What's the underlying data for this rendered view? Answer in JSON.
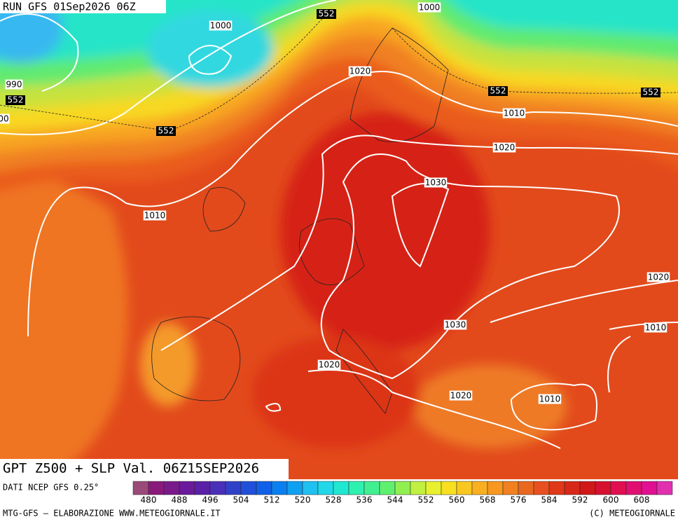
{
  "header": {
    "run": "RUN GFS 01Sep2026 06Z",
    "title": "GPT Z500 + SLP Val. 06Z15SEP2026"
  },
  "contour_labels": {
    "z500": [
      "552",
      "552",
      "552",
      "552",
      "552"
    ],
    "slp": [
      "1000",
      "1000",
      "990",
      "00",
      "1020",
      "1010",
      "1020",
      "1010",
      "1030",
      "1020",
      "1010",
      "1030",
      "1020",
      "1020",
      "1010"
    ]
  },
  "colorbar": {
    "colors": [
      "#9a4a7a",
      "#8a1a7a",
      "#7a1a8a",
      "#6a1a9a",
      "#5a20a8",
      "#4a30b8",
      "#3040c8",
      "#2050d8",
      "#1060e8",
      "#0a80f0",
      "#10a0f0",
      "#20c0f0",
      "#20d8e8",
      "#20e8d0",
      "#30f0b0",
      "#40f090",
      "#60f070",
      "#90f050",
      "#c0f040",
      "#e8f030",
      "#f8e020",
      "#f8c820",
      "#f8b020",
      "#f89820",
      "#f08020",
      "#e86820",
      "#e85020",
      "#e03818",
      "#d82818",
      "#d01818",
      "#d81030",
      "#e01050",
      "#e01070",
      "#e01090",
      "#e030b0"
    ],
    "labels": [
      480,
      488,
      496,
      504,
      512,
      520,
      528,
      536,
      544,
      552,
      560,
      568,
      576,
      584,
      592,
      600,
      608
    ]
  },
  "footer": {
    "source": "DATI NCEP GFS 0.25°",
    "credit": "MTG-GFS – ELABORAZIONE WWW.METEOGIORNALE.IT",
    "copyright": "(C) METEOGIORNALE"
  }
}
